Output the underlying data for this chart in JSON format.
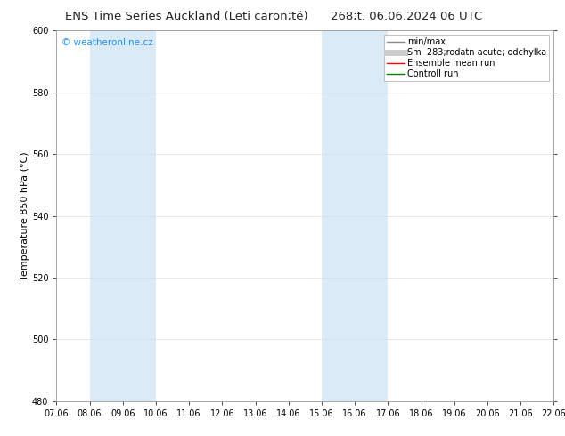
{
  "title_left": "ENS Time Series Auckland (Leti caron;tě)",
  "title_right": "268;t. 06.06.2024 06 UTC",
  "ylabel": "Temperature 850 hPa (°C)",
  "xlim_dates": [
    "07.06",
    "08.06",
    "09.06",
    "10.06",
    "11.06",
    "12.06",
    "13.06",
    "14.06",
    "15.06",
    "16.06",
    "17.06",
    "18.06",
    "19.06",
    "20.06",
    "21.06",
    "22.06"
  ],
  "ylim": [
    480,
    600
  ],
  "yticks": [
    480,
    500,
    520,
    540,
    560,
    580,
    600
  ],
  "shaded_bands": [
    {
      "xmin": 1,
      "xmax": 3,
      "color": "#daeaf6"
    },
    {
      "xmin": 8,
      "xmax": 10,
      "color": "#daeaf6"
    }
  ],
  "legend_entries": [
    {
      "label": "min/max",
      "color": "#888888",
      "linestyle": "-",
      "lw": 1.0
    },
    {
      "label": "Sm  283;rodatn acute; odchylka",
      "color": "#cccccc",
      "linestyle": "-",
      "lw": 5
    },
    {
      "label": "Ensemble mean run",
      "color": "#ff0000",
      "linestyle": "-",
      "lw": 1.0
    },
    {
      "label": "Controll run",
      "color": "#008000",
      "linestyle": "-",
      "lw": 1.0
    }
  ],
  "watermark": "© weatheronline.cz",
  "watermark_color": "#1e90ff",
  "bg_color": "#ffffff",
  "plot_bg_color": "#ffffff",
  "border_color": "#999999",
  "title_fontsize": 9.5,
  "ylabel_fontsize": 8,
  "tick_fontsize": 7,
  "legend_fontsize": 7,
  "watermark_fontsize": 7.5
}
